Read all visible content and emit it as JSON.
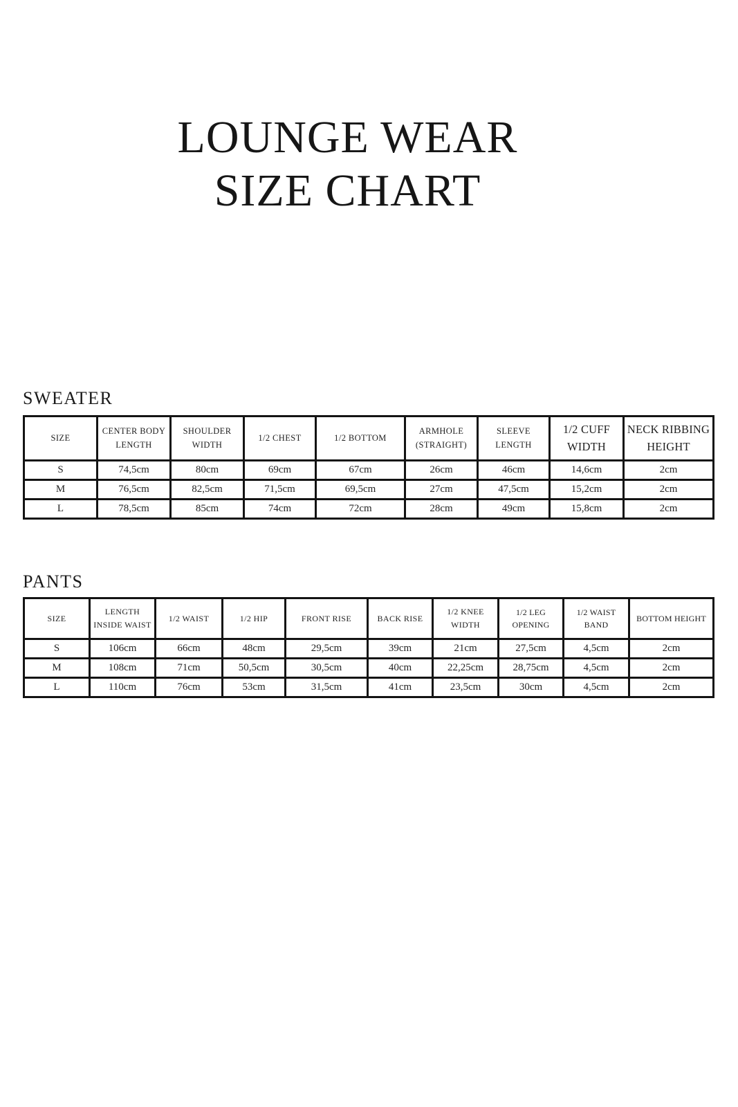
{
  "page": {
    "title_line1": "LOUNGE WEAR",
    "title_line2": "SIZE CHART"
  },
  "colors": {
    "background": "#ffffff",
    "text": "#1e1e1e",
    "border": "#131313"
  },
  "tables": [
    {
      "id": "sweater",
      "heading": "SWEATER",
      "columns": [
        "SIZE",
        "CENTER BODY LENGTH",
        "SHOULDER WIDTH",
        "1/2 CHEST",
        "1/2 BOTTOM",
        "ARMHOLE (STRAIGHT)",
        "SLEEVE LENGTH",
        "1/2 CUFF WIDTH",
        "NECK RIBBING HEIGHT"
      ],
      "rows": [
        [
          "S",
          "74,5cm",
          "80cm",
          "69cm",
          "67cm",
          "26cm",
          "46cm",
          "14,6cm",
          "2cm"
        ],
        [
          "M",
          "76,5cm",
          "82,5cm",
          "71,5cm",
          "69,5cm",
          "27cm",
          "47,5cm",
          "15,2cm",
          "2cm"
        ],
        [
          "L",
          "78,5cm",
          "85cm",
          "74cm",
          "72cm",
          "28cm",
          "49cm",
          "15,8cm",
          "2cm"
        ]
      ]
    },
    {
      "id": "pants",
      "heading": "PANTS",
      "columns": [
        "SIZE",
        "LENGTH INSIDE WAIST",
        "1/2 WAIST",
        "1/2 HIP",
        "FRONT RISE",
        "BACK RISE",
        "1/2 KNEE WIDTH",
        "1/2 LEG OPENING",
        "1/2 WAIST BAND",
        "BOTTOM HEIGHT"
      ],
      "rows": [
        [
          "S",
          "106cm",
          "66cm",
          "48cm",
          "29,5cm",
          "39cm",
          "21cm",
          "27,5cm",
          "4,5cm",
          "2cm"
        ],
        [
          "M",
          "108cm",
          "71cm",
          "50,5cm",
          "30,5cm",
          "40cm",
          "22,25cm",
          "28,75cm",
          "4,5cm",
          "2cm"
        ],
        [
          "L",
          "110cm",
          "76cm",
          "53cm",
          "31,5cm",
          "41cm",
          "23,5cm",
          "30cm",
          "4,5cm",
          "2cm"
        ]
      ]
    }
  ]
}
